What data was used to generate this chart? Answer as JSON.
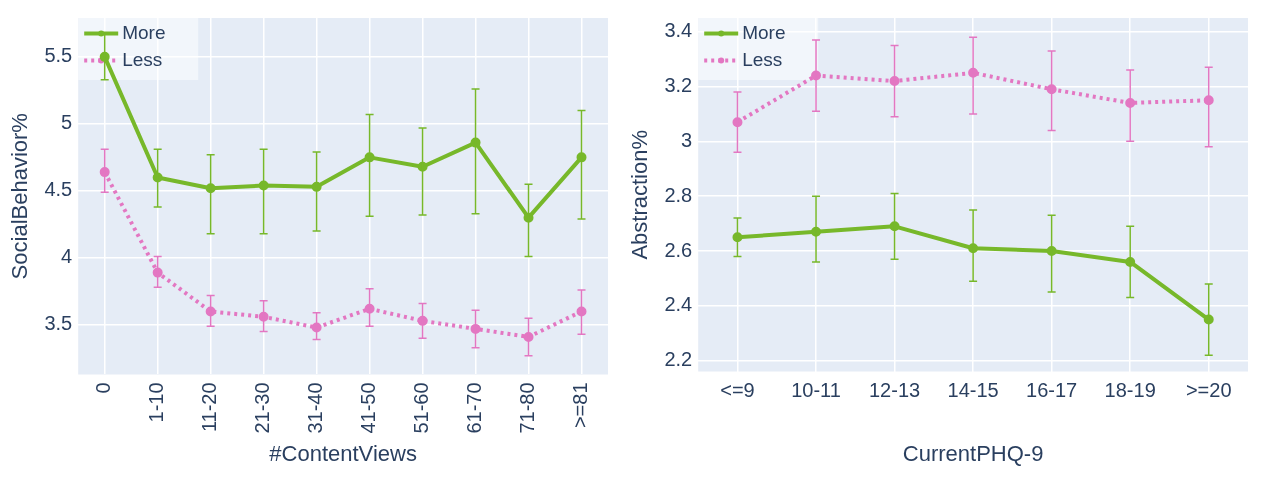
{
  "chart_data": [
    {
      "type": "line",
      "xlabel": "#ContentViews",
      "ylabel": "SocialBehavior%",
      "categories": [
        "0",
        "1-10",
        "11-20",
        "21-30",
        "31-40",
        "41-50",
        "51-60",
        "61-70",
        "71-80",
        ">=81"
      ],
      "marker": "circle",
      "grid": true,
      "legend": "top left",
      "ylim": [
        3.13,
        5.79
      ],
      "yticks": [
        3.5,
        4,
        4.5,
        5,
        5.5
      ],
      "series": [
        {
          "name": "More",
          "color": "#77b82a",
          "line_style": "solid",
          "values": [
            5.5,
            4.6,
            4.52,
            4.54,
            4.53,
            4.75,
            4.68,
            4.86,
            4.3,
            4.75
          ],
          "errors": [
            [
              5.33,
              5.67
            ],
            [
              4.38,
              4.81
            ],
            [
              4.18,
              4.77
            ],
            [
              4.18,
              4.81
            ],
            [
              4.2,
              4.79
            ],
            [
              4.31,
              5.07
            ],
            [
              4.32,
              4.97
            ],
            [
              4.33,
              5.26
            ],
            [
              4.01,
              4.55
            ],
            [
              4.29,
              5.1
            ]
          ]
        },
        {
          "name": "Less",
          "color": "#e377c2",
          "line_style": "dotted",
          "values": [
            4.64,
            3.89,
            3.6,
            3.56,
            3.48,
            3.62,
            3.53,
            3.47,
            3.41,
            3.6
          ],
          "errors": [
            [
              4.49,
              4.81
            ],
            [
              3.78,
              4.01
            ],
            [
              3.49,
              3.72
            ],
            [
              3.45,
              3.68
            ],
            [
              3.39,
              3.59
            ],
            [
              3.49,
              3.77
            ],
            [
              3.4,
              3.66
            ],
            [
              3.33,
              3.61
            ],
            [
              3.27,
              3.55
            ],
            [
              3.43,
              3.76
            ]
          ]
        }
      ]
    },
    {
      "type": "line",
      "xlabel": "CurrentPHQ-9",
      "ylabel": "Abstraction%",
      "categories": [
        "<=9",
        "10-11",
        "12-13",
        "14-15",
        "16-17",
        "18-19",
        ">=20"
      ],
      "marker": "circle",
      "grid": true,
      "legend": "top left",
      "ylim": [
        2.16,
        3.45
      ],
      "yticks": [
        2.2,
        2.4,
        2.6,
        2.8,
        3,
        3.2,
        3.4
      ],
      "series": [
        {
          "name": "More",
          "color": "#77b82a",
          "line_style": "solid",
          "values": [
            2.65,
            2.67,
            2.69,
            2.61,
            2.6,
            2.56,
            2.35
          ],
          "errors": [
            [
              2.58,
              2.72
            ],
            [
              2.56,
              2.8
            ],
            [
              2.57,
              2.81
            ],
            [
              2.49,
              2.75
            ],
            [
              2.45,
              2.73
            ],
            [
              2.43,
              2.69
            ],
            [
              2.22,
              2.48
            ]
          ]
        },
        {
          "name": "Less",
          "color": "#e377c2",
          "line_style": "dotted",
          "values": [
            3.07,
            3.24,
            3.22,
            3.25,
            3.19,
            3.14,
            3.15
          ],
          "errors": [
            [
              2.96,
              3.18
            ],
            [
              3.11,
              3.37
            ],
            [
              3.09,
              3.35
            ],
            [
              3.1,
              3.38
            ],
            [
              3.04,
              3.33
            ],
            [
              3.0,
              3.26
            ],
            [
              2.98,
              3.27
            ]
          ]
        }
      ]
    }
  ]
}
